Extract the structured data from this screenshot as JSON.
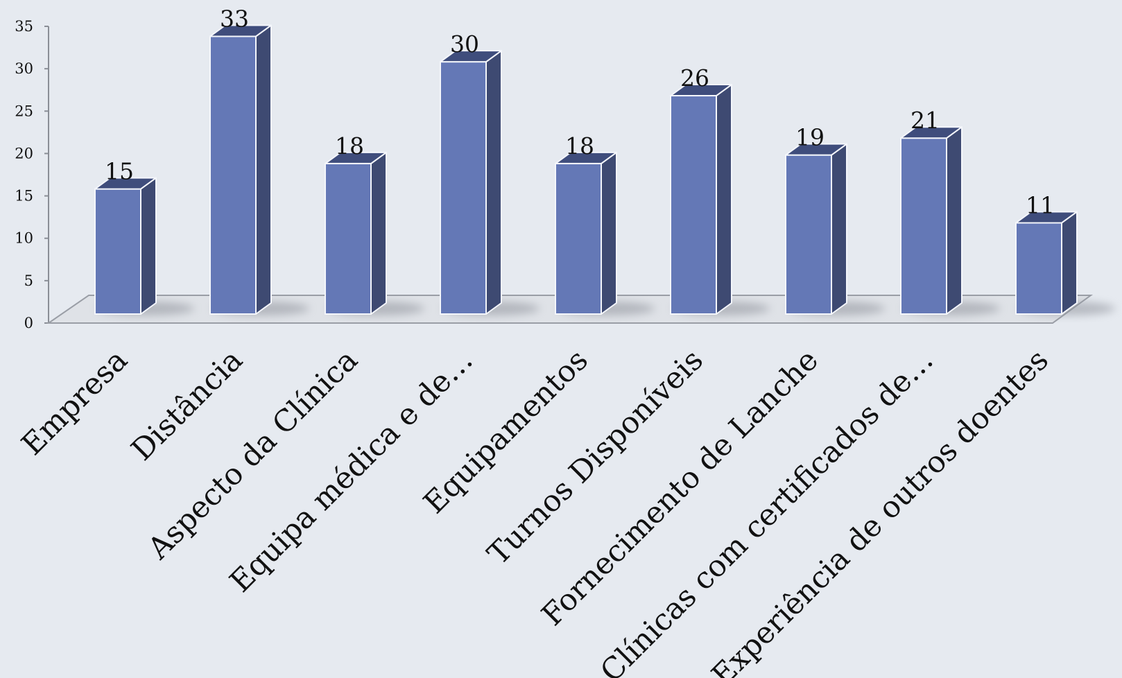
{
  "chart_data": {
    "type": "bar",
    "style": "3d-column",
    "categories": [
      "Empresa",
      "Distância",
      "Aspecto da Clínica",
      "Equipa médica e de…",
      "Equipamentos",
      "Turnos Disponíveis",
      "Fornecimento de Lanche",
      "Clínicas com certificados de…",
      "Experiência de outros doentes"
    ],
    "values": [
      15,
      33,
      18,
      30,
      18,
      26,
      19,
      21,
      11
    ],
    "data_labels": [
      "15",
      "33",
      "18",
      "30",
      "18",
      "26",
      "19",
      "21",
      "11"
    ],
    "y_ticks": [
      "0",
      "5",
      "10",
      "15",
      "20",
      "25",
      "30",
      "35"
    ],
    "ylim": [
      0,
      35
    ],
    "grid": false,
    "legend": "none",
    "colors": {
      "bar_front": "#6478b6",
      "bar_side": "#3e4a72",
      "bar_top": "#3f4d7c",
      "bar_edge": "#f4f6fb",
      "floor": "#dfe2e7",
      "floor_edge": "#9a9ea6",
      "background": "#e6eaf0"
    }
  }
}
